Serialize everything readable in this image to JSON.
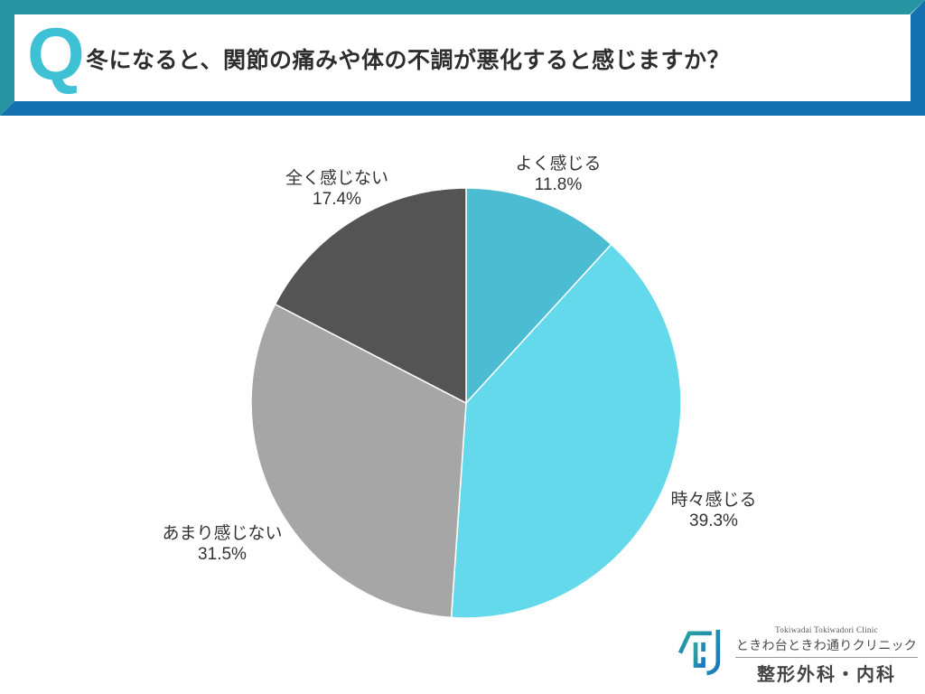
{
  "header": {
    "q_mark": "Q",
    "question": "冬になると、関節の痛みや体の不調が悪化すると感じますか？",
    "frame_teal": "#2795A1",
    "frame_blue": "#1571B0",
    "q_color": "#3FC1D5"
  },
  "chart_data": {
    "type": "pie",
    "title": "冬になると、関節の痛みや体の不調が悪化すると感じますか？",
    "start_angle_deg": -90,
    "direction": "clockwise",
    "legend_position": "outside-labels",
    "slices": [
      {
        "label": "よく感じる",
        "value": 11.8,
        "pct_text": "11.8%",
        "color": "#4BBCD2"
      },
      {
        "label": "時々感じる",
        "value": 39.3,
        "pct_text": "39.3%",
        "color": "#64D9EB"
      },
      {
        "label": "あまり感じない",
        "value": 31.5,
        "pct_text": "31.5%",
        "color": "#A6A6A6"
      },
      {
        "label": "全く感じない",
        "value": 17.4,
        "pct_text": "17.4%",
        "color": "#545454"
      }
    ]
  },
  "footer_logo": {
    "clinic_en": "Tokiwadai Tokiwadori Clinic",
    "clinic_jp": "ときわ台ときわ通りクリニック",
    "departments": "整形外科・内科",
    "mark_gradient": [
      "#2AA79B",
      "#1B74C5"
    ]
  }
}
